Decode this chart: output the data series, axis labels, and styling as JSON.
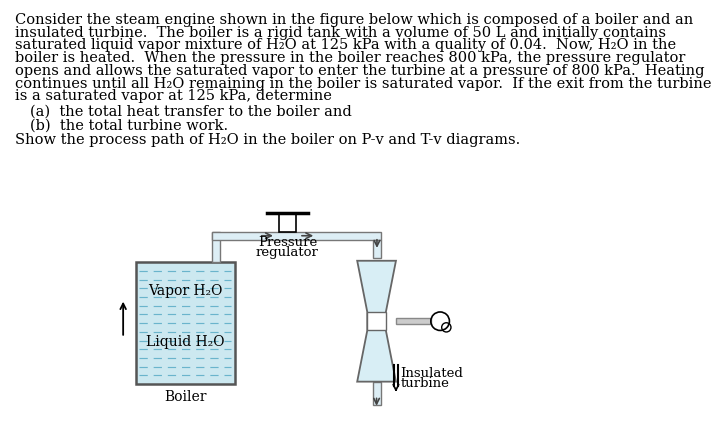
{
  "background_color": "#ffffff",
  "text_color": "#000000",
  "boiler_label": "Boiler",
  "vapor_label": "Vapor H₂O",
  "liquid_label": "Liquid H₂O",
  "pressure_reg_label1": "Pressure",
  "pressure_reg_label2": "regulator",
  "turbine_label1": "Insulated",
  "turbine_label2": "turbine",
  "boiler_fill_color": "#cce8f0",
  "boiler_outline_color": "#555555",
  "pipe_fill_color": "#ddeef5",
  "pipe_edge_color": "#777777",
  "turbine_fill_color": "#d8eef5",
  "turbine_edge_color": "#666666",
  "dash_color": "#6ab4cc",
  "font_size_body": 10.5,
  "font_size_label": 10,
  "paragraph_lines": [
    "Consider the steam engine shown in the figure below which is composed of a boiler and an",
    "insulated turbine.  The boiler is a rigid tank with a volume of 50 L and initially contains",
    "saturated liquid vapor mixture of H₂O at 125 kPa with a quality of 0.04.  Now, H₂O in the",
    "boiler is heated.  When the pressure in the boiler reaches 800 kPa, the pressure regulator",
    "opens and allows the saturated vapor to enter the turbine at a pressure of 800 kPa.  Heating",
    "continues until all H₂O remaining in the boiler is saturated vapor.  If the exit from the turbine",
    "is a saturated vapor at 125 kPa, determine"
  ],
  "item_a": "(a)  the total heat transfer to the boiler and",
  "item_b": "(b)  the total turbine work.",
  "show_text": "Show the process path of H₂O in the boiler on P-v and T-v diagrams."
}
